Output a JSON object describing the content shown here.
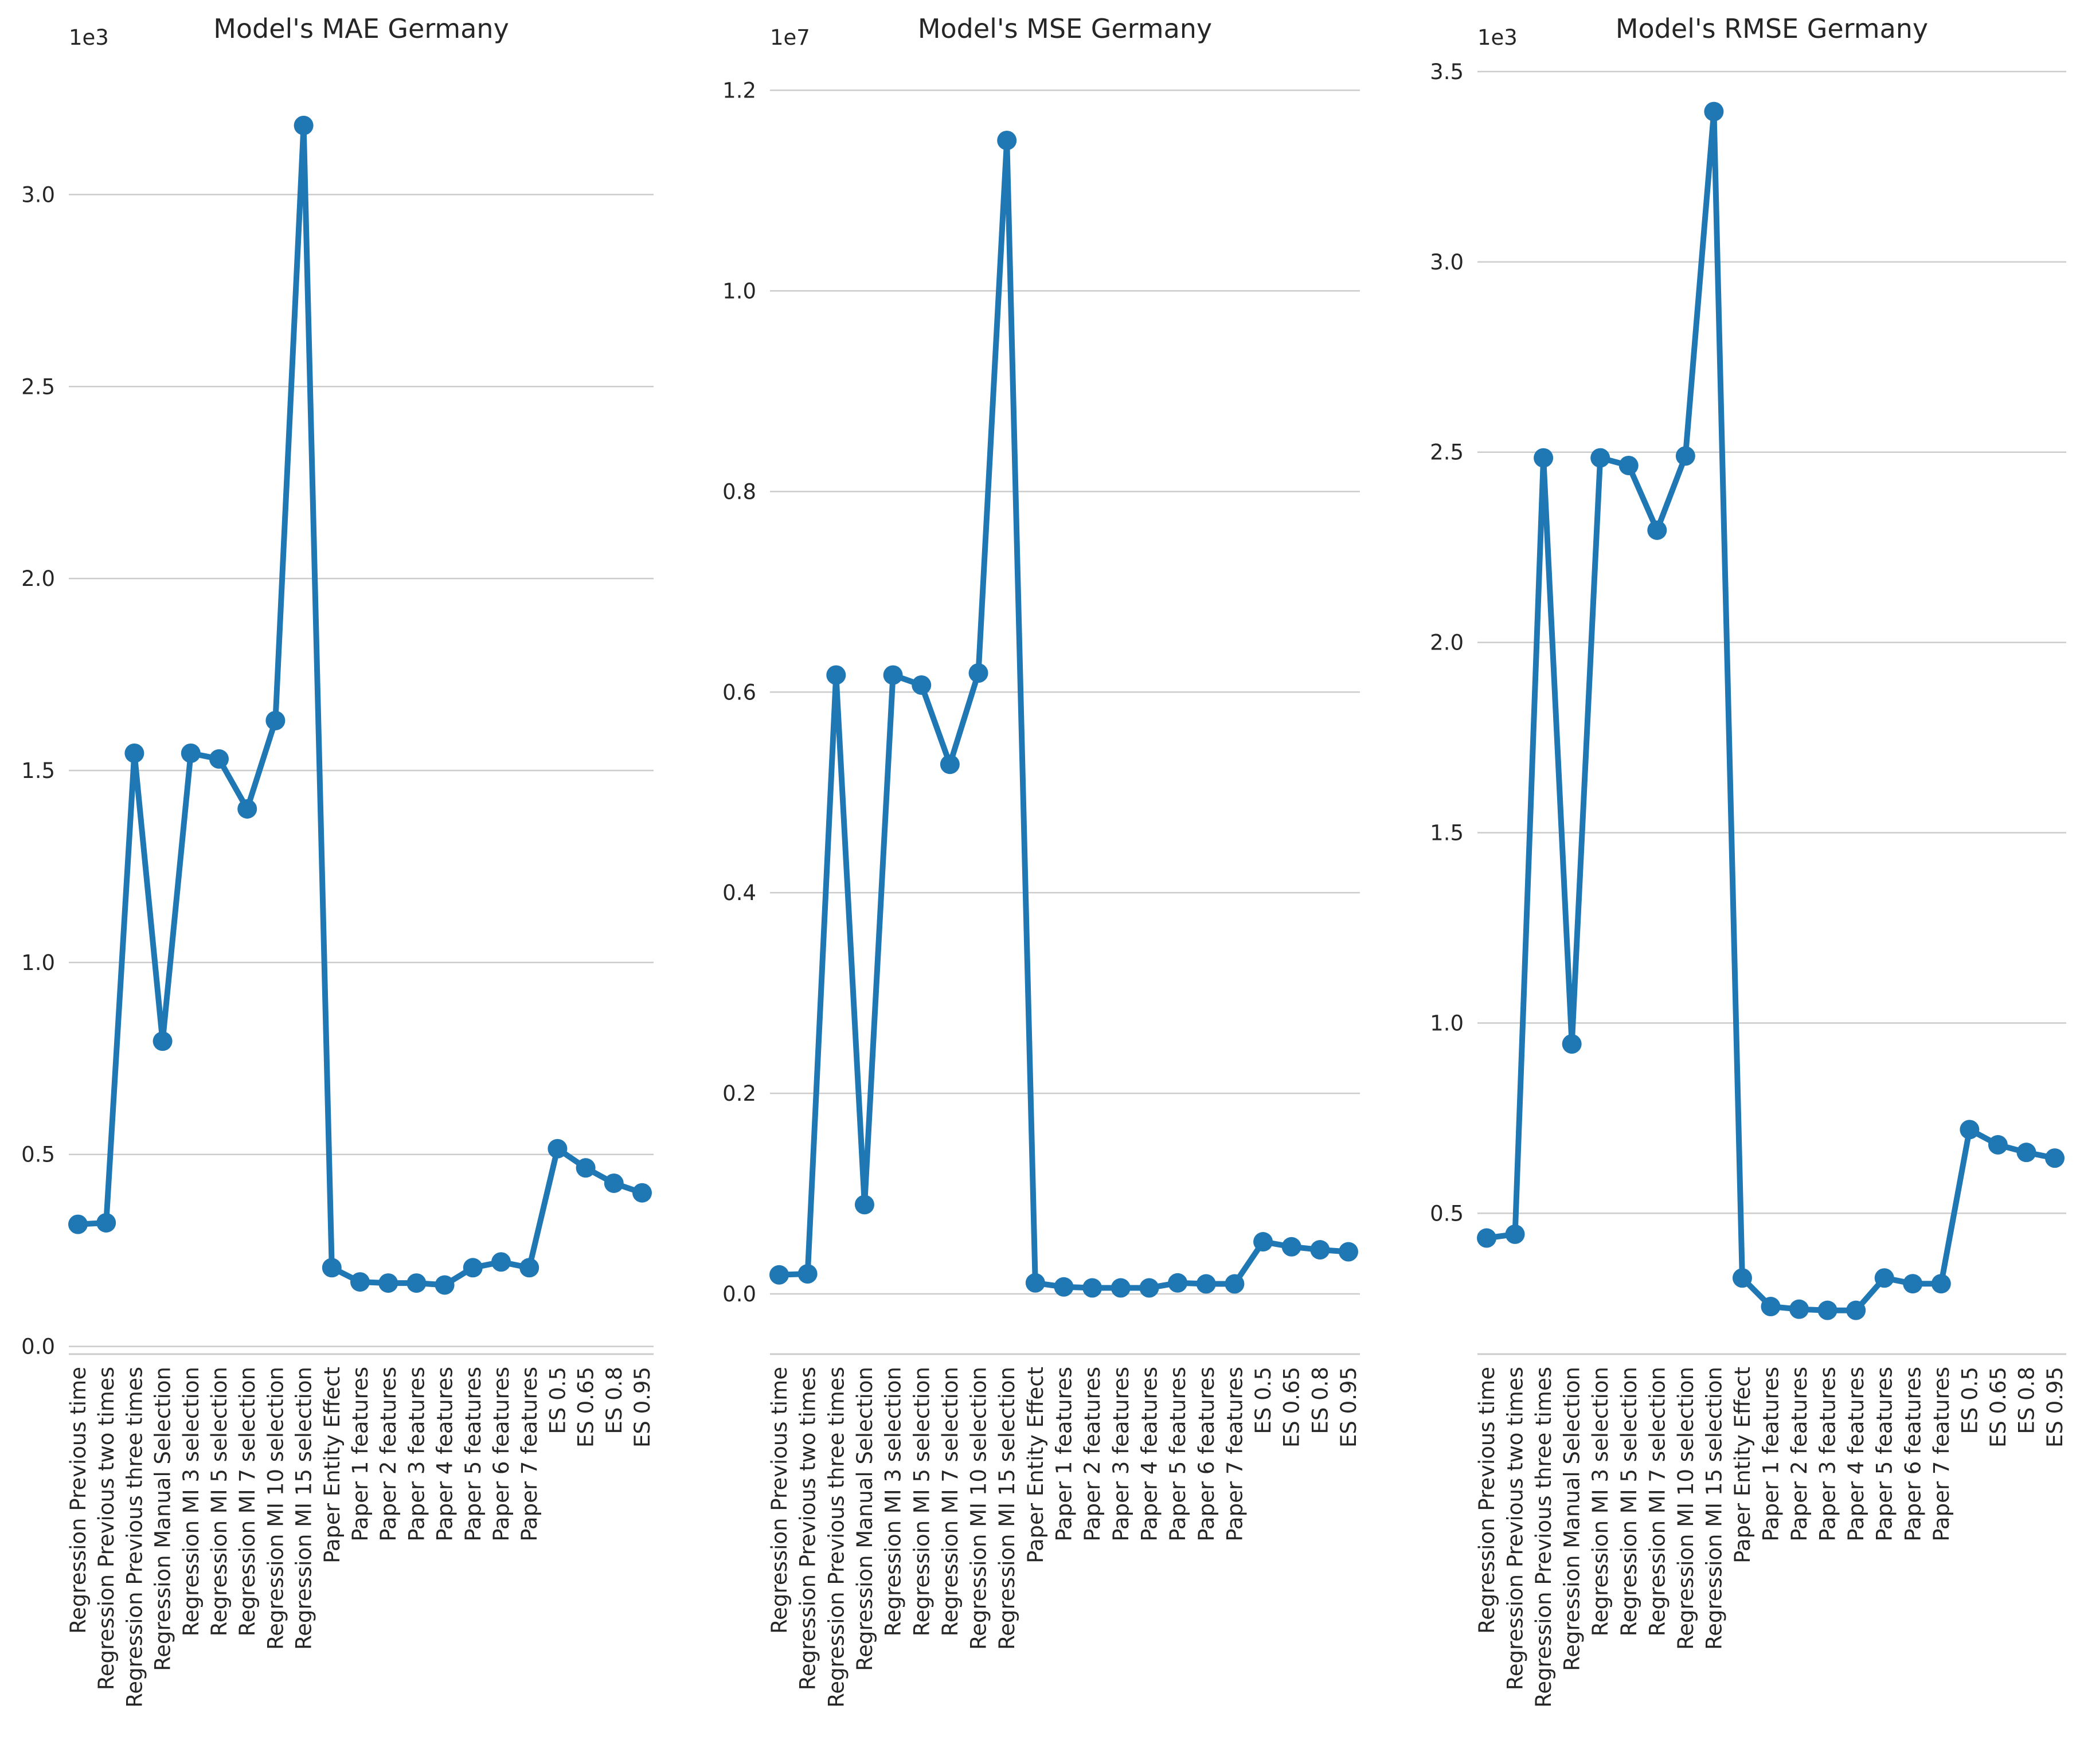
{
  "colors": {
    "series": "#1f77b4",
    "grid": "#cccccc",
    "text": "#262626"
  },
  "chart_data": [
    {
      "type": "line",
      "title": "Model's MAE Germany",
      "offset_label": "1e3",
      "xlabel": "",
      "ylabel": "",
      "grid": "horizontal",
      "categories": [
        "Regression Previous time",
        "Regression Previous two times",
        "Regression Previous three times",
        "Regression Manual Selection",
        "Regression MI 3 selection",
        "Regression MI 5 selection",
        "Regression MI 7 selection",
        "Regression MI 10 selection",
        "Regression MI 15 selection",
        "Paper Entity Effect",
        "Paper 1 features",
        "Paper 2 features",
        "Paper 3 features",
        "Paper 4 features",
        "Paper 5 features",
        "Paper 6 features",
        "Paper 7 features",
        "ES 0.5",
        "ES 0.65",
        "ES 0.8",
        "ES 0.95"
      ],
      "values": [
        0.318,
        0.322,
        1.545,
        0.795,
        1.545,
        1.53,
        1.4,
        1.63,
        3.18,
        0.205,
        0.168,
        0.165,
        0.165,
        0.16,
        0.205,
        0.22,
        0.205,
        0.515,
        0.465,
        0.425,
        0.4
      ],
      "ylim": [
        -0.02,
        3.35
      ],
      "yticks": [
        0.0,
        0.5,
        1.0,
        1.5,
        2.0,
        2.5,
        3.0
      ],
      "ytick_labels": [
        "0.0",
        "0.5",
        "1.0",
        "1.5",
        "2.0",
        "2.5",
        "3.0"
      ]
    },
    {
      "type": "line",
      "title": "Model's MSE Germany",
      "offset_label": "1e7",
      "xlabel": "",
      "ylabel": "",
      "grid": "horizontal",
      "categories": [
        "Regression Previous time",
        "Regression Previous two times",
        "Regression Previous three times",
        "Regression Manual Selection",
        "Regression MI 3 selection",
        "Regression MI 5 selection",
        "Regression MI 7 selection",
        "Regression MI 10 selection",
        "Regression MI 15 selection",
        "Paper Entity Effect",
        "Paper 1 features",
        "Paper 2 features",
        "Paper 3 features",
        "Paper 4 features",
        "Paper 5 features",
        "Paper 6 features",
        "Paper 7 features",
        "ES 0.5",
        "ES 0.65",
        "ES 0.8",
        "ES 0.95"
      ],
      "values": [
        0.019,
        0.02,
        0.617,
        0.089,
        0.617,
        0.607,
        0.528,
        0.619,
        1.15,
        0.011,
        0.007,
        0.006,
        0.006,
        0.006,
        0.011,
        0.01,
        0.01,
        0.052,
        0.047,
        0.044,
        0.042
      ],
      "ylim": [
        -0.06,
        1.23
      ],
      "yticks": [
        0.0,
        0.2,
        0.4,
        0.6,
        0.8,
        1.0,
        1.2
      ],
      "ytick_labels": [
        "0.0",
        "0.2",
        "0.4",
        "0.6",
        "0.8",
        "1.0",
        "1.2"
      ]
    },
    {
      "type": "line",
      "title": "Model's RMSE Germany",
      "offset_label": "1e3",
      "xlabel": "",
      "ylabel": "",
      "grid": "horizontal",
      "categories": [
        "Regression Previous time",
        "Regression Previous two times",
        "Regression Previous three times",
        "Regression Manual Selection",
        "Regression MI 3 selection",
        "Regression MI 5 selection",
        "Regression MI 7 selection",
        "Regression MI 10 selection",
        "Regression MI 15 selection",
        "Paper Entity Effect",
        "Paper 1 features",
        "Paper 2 features",
        "Paper 3 features",
        "Paper 4 features",
        "Paper 5 features",
        "Paper 6 features",
        "Paper 7 features",
        "ES 0.5",
        "ES 0.65",
        "ES 0.8",
        "ES 0.95"
      ],
      "values": [
        0.435,
        0.445,
        2.485,
        0.945,
        2.485,
        2.465,
        2.295,
        2.49,
        3.395,
        0.33,
        0.255,
        0.248,
        0.245,
        0.245,
        0.33,
        0.315,
        0.315,
        0.72,
        0.68,
        0.66,
        0.645
      ],
      "ylim": [
        0.13,
        3.53
      ],
      "yticks": [
        0.5,
        1.0,
        1.5,
        2.0,
        2.5,
        3.0,
        3.5
      ],
      "ytick_labels": [
        "0.5",
        "1.0",
        "1.5",
        "2.0",
        "2.5",
        "3.0",
        "3.5"
      ]
    }
  ]
}
